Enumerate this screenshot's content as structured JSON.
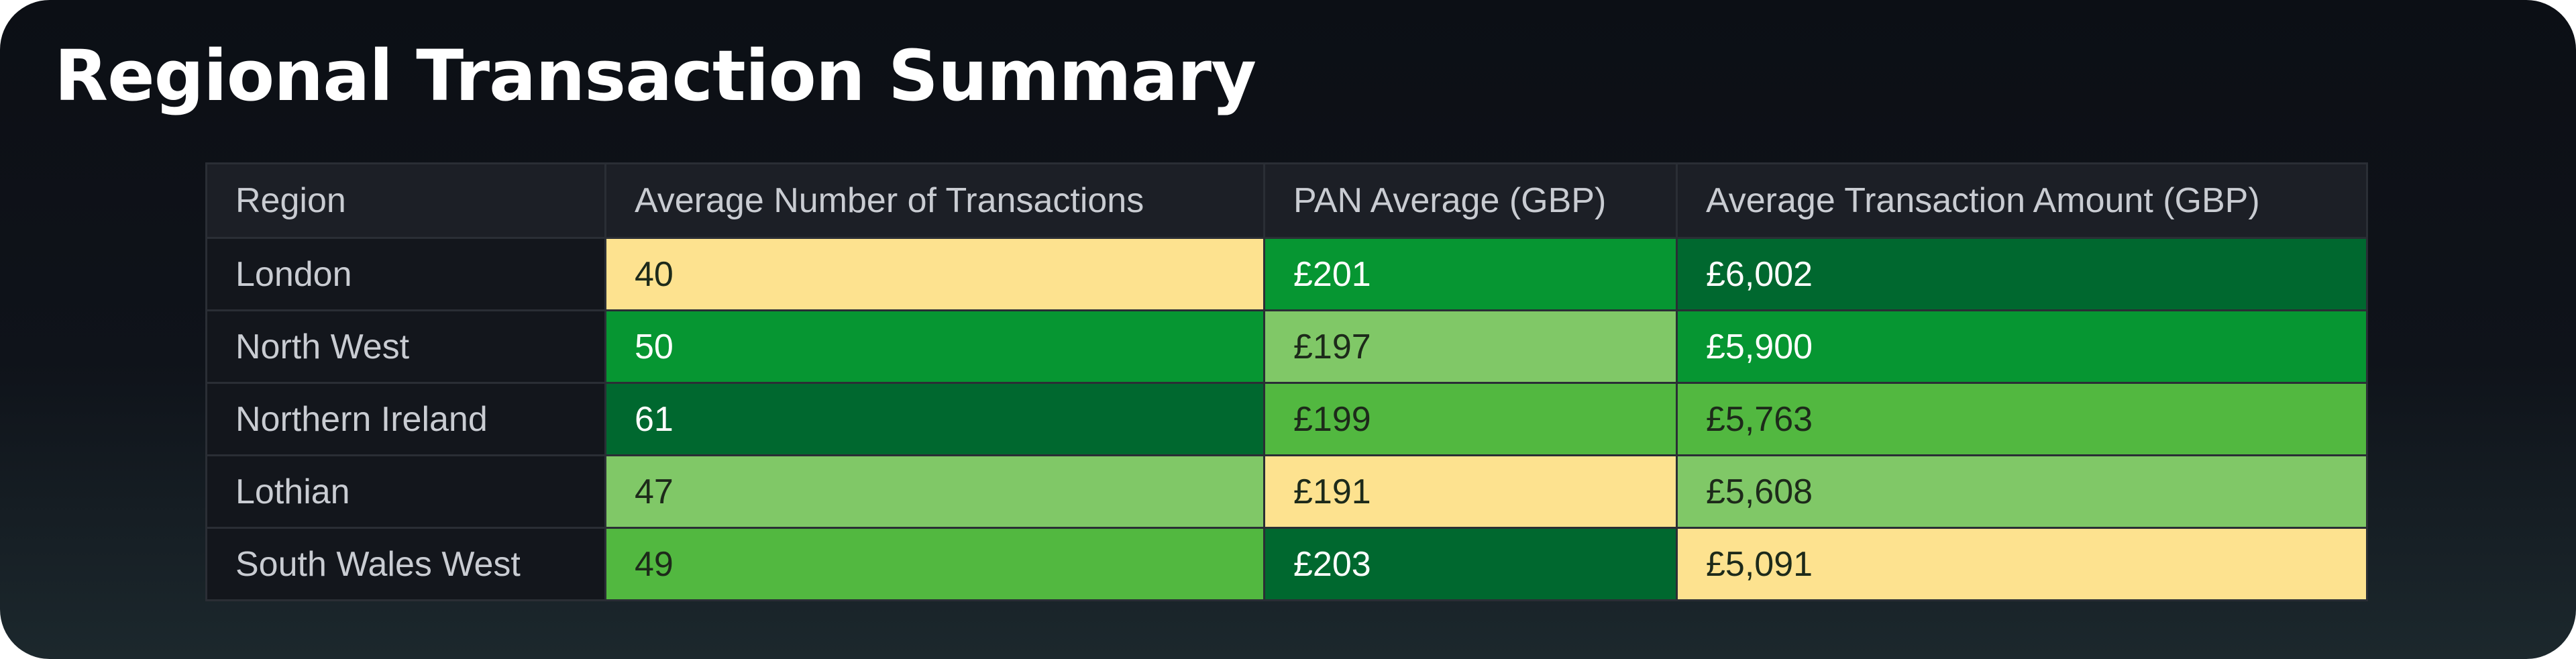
{
  "header": {
    "title": "Regional Transaction Summary"
  },
  "table": {
    "columns": [
      "Region",
      "Average Number of Transactions",
      "PAN Average (GBP)",
      "Average Transaction Amount (GBP)"
    ],
    "rows": [
      [
        "London",
        "40",
        "£201",
        "£6,002"
      ],
      [
        "North West",
        "50",
        "£197",
        "£5,900"
      ],
      [
        "Northern Ireland",
        "61",
        "£199",
        "£5,763"
      ],
      [
        "Lothian",
        "47",
        "£191",
        "£5,608"
      ],
      [
        "South Wales West",
        "49",
        "£203",
        "£5,091"
      ]
    ],
    "cell_colors": [
      [
        null,
        "#fde28f",
        "#069632",
        "#00682f"
      ],
      [
        null,
        "#069632",
        "#80c867",
        "#069632"
      ],
      [
        null,
        "#00682f",
        "#52b840",
        "#52b840"
      ],
      [
        null,
        "#80c867",
        "#fde28f",
        "#80c867"
      ],
      [
        null,
        "#52b840",
        "#00682f",
        "#fde28f"
      ]
    ]
  }
}
